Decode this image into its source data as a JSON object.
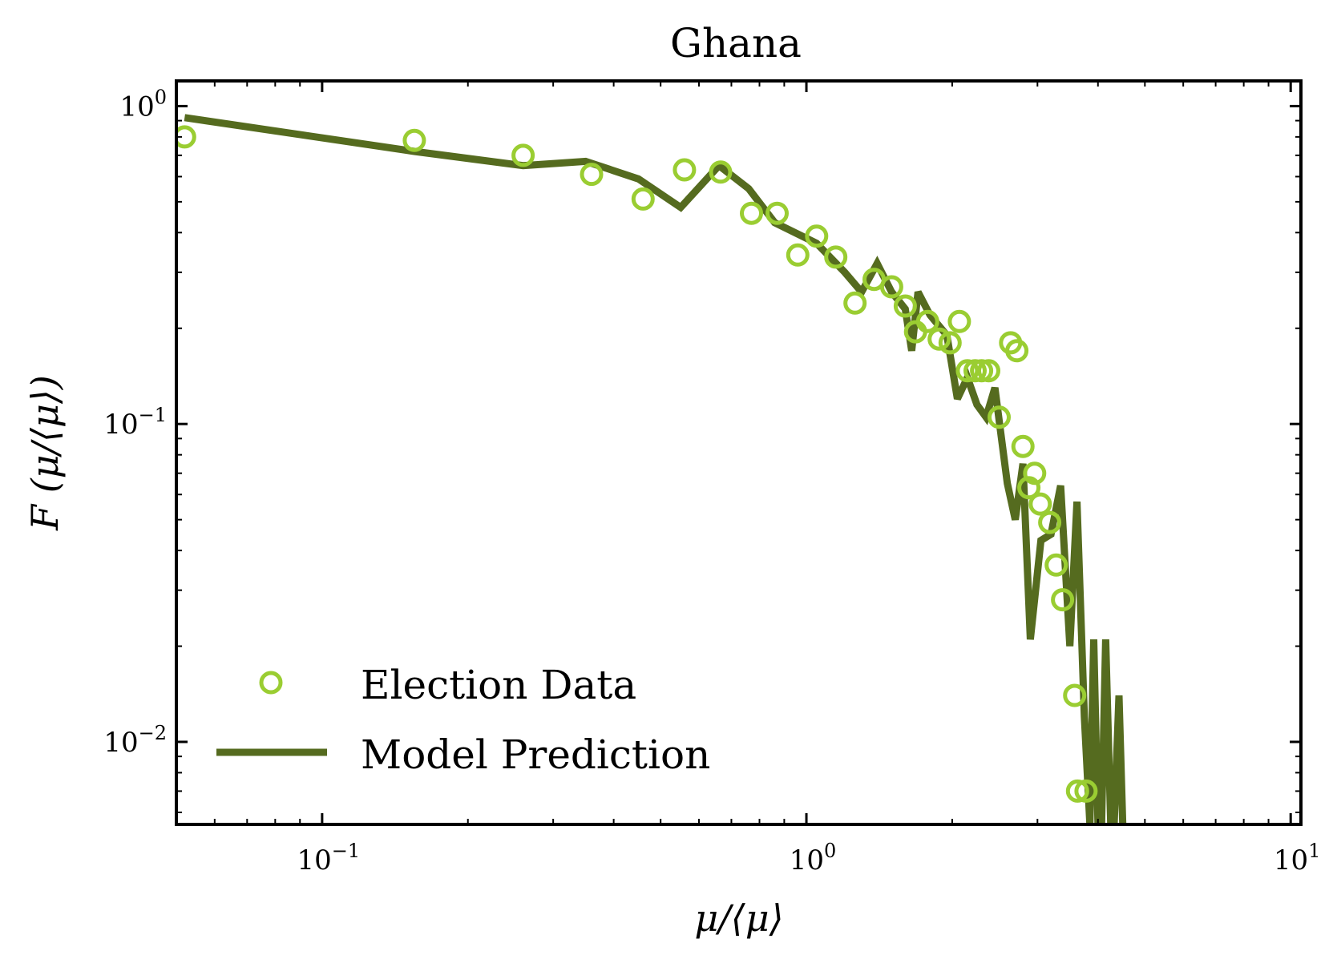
{
  "chart_data": {
    "type": "scatter",
    "title": "Ghana",
    "xlabel": "μ/⟨μ⟩",
    "ylabel": "F (μ/⟨μ⟩)",
    "x_scale": "log",
    "y_scale": "log",
    "xlim": [
      0.05,
      10.5
    ],
    "ylim": [
      0.0055,
      1.2
    ],
    "x_ticks": [
      {
        "value": 0.1,
        "base": "10",
        "exp": "−1"
      },
      {
        "value": 1,
        "base": "10",
        "exp": "0"
      },
      {
        "value": 10,
        "base": "10",
        "exp": "1"
      }
    ],
    "y_ticks": [
      {
        "value": 1,
        "base": "10",
        "exp": "0"
      },
      {
        "value": 0.1,
        "base": "10",
        "exp": "−1"
      },
      {
        "value": 0.01,
        "base": "10",
        "exp": "−2"
      }
    ],
    "grid": false,
    "legend_position": "lower-left",
    "colors": {
      "election_marker": "#9acd32",
      "model_line": "#556b1f"
    },
    "series": [
      {
        "name": "Election Data",
        "kind": "scatter",
        "points": [
          [
            0.052,
            0.8
          ],
          [
            0.155,
            0.78
          ],
          [
            0.26,
            0.7
          ],
          [
            0.36,
            0.61
          ],
          [
            0.46,
            0.51
          ],
          [
            0.56,
            0.63
          ],
          [
            0.665,
            0.62
          ],
          [
            0.77,
            0.46
          ],
          [
            0.87,
            0.46
          ],
          [
            0.96,
            0.34
          ],
          [
            1.05,
            0.39
          ],
          [
            1.15,
            0.335
          ],
          [
            1.26,
            0.24
          ],
          [
            1.38,
            0.285
          ],
          [
            1.5,
            0.27
          ],
          [
            1.6,
            0.235
          ],
          [
            1.68,
            0.195
          ],
          [
            1.78,
            0.21
          ],
          [
            1.88,
            0.185
          ],
          [
            1.98,
            0.18
          ],
          [
            2.07,
            0.21
          ],
          [
            2.15,
            0.147
          ],
          [
            2.23,
            0.147
          ],
          [
            2.3,
            0.147
          ],
          [
            2.38,
            0.147
          ],
          [
            2.5,
            0.105
          ],
          [
            2.64,
            0.18
          ],
          [
            2.72,
            0.17
          ],
          [
            2.8,
            0.085
          ],
          [
            2.88,
            0.063
          ],
          [
            2.96,
            0.07
          ],
          [
            3.04,
            0.056
          ],
          [
            3.18,
            0.049
          ],
          [
            3.28,
            0.036
          ],
          [
            3.38,
            0.028
          ],
          [
            3.58,
            0.014
          ],
          [
            3.63,
            0.007
          ],
          [
            3.78,
            0.007
          ]
        ]
      },
      {
        "name": "Model Prediction",
        "kind": "line",
        "points": [
          [
            0.052,
            0.92
          ],
          [
            0.155,
            0.72
          ],
          [
            0.26,
            0.65
          ],
          [
            0.35,
            0.67
          ],
          [
            0.45,
            0.59
          ],
          [
            0.55,
            0.48
          ],
          [
            0.66,
            0.65
          ],
          [
            0.76,
            0.55
          ],
          [
            0.86,
            0.43
          ],
          [
            1.05,
            0.37
          ],
          [
            1.2,
            0.3
          ],
          [
            1.3,
            0.26
          ],
          [
            1.4,
            0.32
          ],
          [
            1.5,
            0.26
          ],
          [
            1.6,
            0.23
          ],
          [
            1.65,
            0.17
          ],
          [
            1.7,
            0.26
          ],
          [
            1.8,
            0.22
          ],
          [
            1.95,
            0.19
          ],
          [
            2.05,
            0.12
          ],
          [
            2.15,
            0.14
          ],
          [
            2.25,
            0.115
          ],
          [
            2.35,
            0.105
          ],
          [
            2.45,
            0.13
          ],
          [
            2.6,
            0.065
          ],
          [
            2.7,
            0.05
          ],
          [
            2.8,
            0.075
          ],
          [
            2.9,
            0.021
          ],
          [
            3.05,
            0.043
          ],
          [
            3.2,
            0.045
          ],
          [
            3.35,
            0.064
          ],
          [
            3.5,
            0.02
          ],
          [
            3.62,
            0.057
          ],
          [
            3.75,
            0.012
          ],
          [
            3.85,
            0.0055
          ],
          [
            3.92,
            0.021
          ],
          [
            4.0,
            0.0055
          ],
          [
            4.07,
            0.0055
          ],
          [
            4.15,
            0.021
          ],
          [
            4.25,
            0.0055
          ],
          [
            4.32,
            0.0055
          ],
          [
            4.42,
            0.014
          ],
          [
            4.5,
            0.0055
          ]
        ]
      }
    ]
  }
}
